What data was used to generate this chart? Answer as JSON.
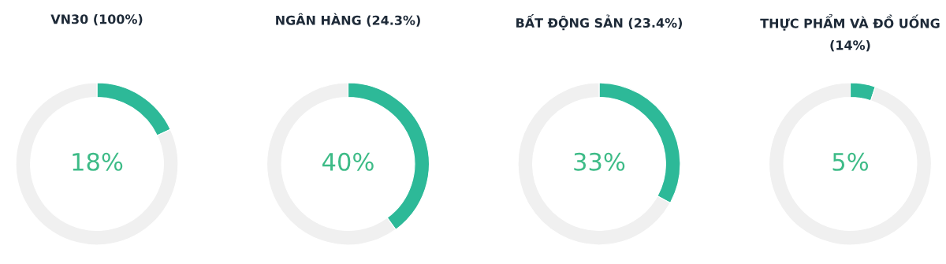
{
  "chart_data": [
    {
      "type": "donut",
      "title": "VN30 (100%)",
      "categories": [
        null,
        null
      ],
      "values": [
        18,
        82
      ],
      "colors": [
        "#2db998",
        "#f0f0f0"
      ],
      "value_labels": [
        "18%",
        null
      ]
    },
    {
      "type": "donut",
      "title": "NGÂN HÀNG (24.3%)",
      "categories": [
        null,
        null
      ],
      "values": [
        40,
        60
      ],
      "colors": [
        "#2db998",
        "#f0f0f0"
      ],
      "value_labels": [
        "40%",
        null
      ]
    },
    {
      "type": "donut",
      "title": "BẤT ĐỘNG SẢN (23.4%)",
      "categories": [
        null,
        null
      ],
      "values": [
        33,
        67
      ],
      "colors": [
        "#2db998",
        "#f0f0f0"
      ],
      "value_labels": [
        "33%",
        null
      ]
    },
    {
      "type": "donut",
      "title": "THỰC PHẨM VÀ ĐỒ UỐNG (14%)",
      "categories": [
        null,
        null
      ],
      "values": [
        5,
        95
      ],
      "colors": [
        "#2db998",
        "#f0f0f0"
      ],
      "value_labels": [
        "5%",
        null
      ]
    }
  ]
}
